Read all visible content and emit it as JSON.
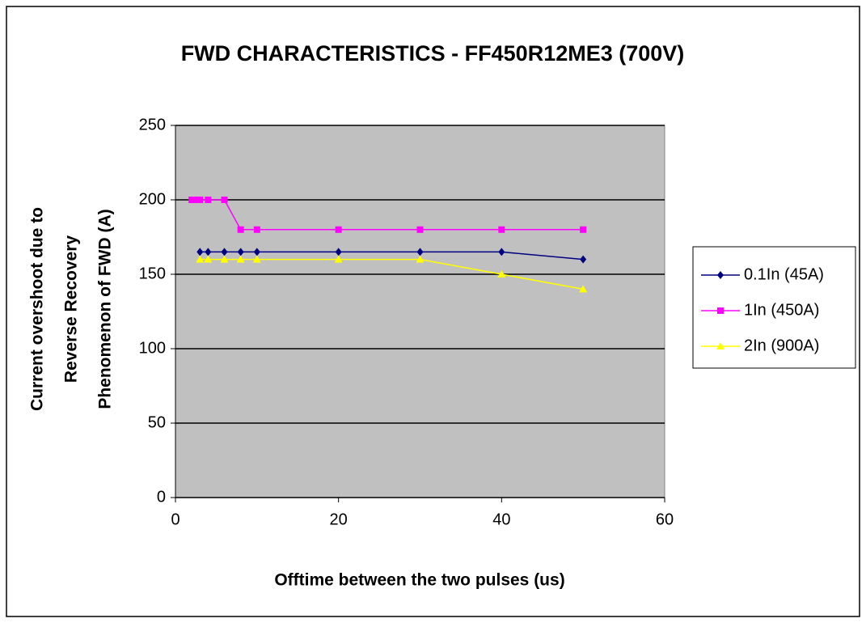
{
  "chart_data": {
    "type": "line",
    "title": "FWD CHARACTERISTICS - FF450R12ME3 (700V)",
    "x_label": "Offtime between the two pulses (us)",
    "y_label": [
      "Current overshoot due to",
      "Reverse Recovery",
      "Phenomenon of FWD (A)"
    ],
    "series": [
      {
        "name": "0.1In (45A)",
        "color": "#000080",
        "marker": "diamond",
        "x": [
          3,
          4,
          6,
          8,
          10,
          20,
          30,
          40,
          50
        ],
        "values": [
          165,
          165,
          165,
          165,
          165,
          165,
          165,
          165,
          160
        ]
      },
      {
        "name": "1In (450A)",
        "color": "#ff00ff",
        "marker": "square",
        "x": [
          2,
          2.5,
          3,
          4,
          6,
          8,
          10,
          20,
          30,
          40,
          50
        ],
        "values": [
          200,
          200,
          200,
          200,
          200,
          180,
          180,
          180,
          180,
          180,
          180
        ]
      },
      {
        "name": "2In (900A)",
        "color": "#ffff00",
        "marker": "triangle",
        "x": [
          3,
          4,
          6,
          8,
          10,
          20,
          30,
          40,
          50
        ],
        "values": [
          160,
          160,
          160,
          160,
          160,
          160,
          160,
          150,
          140
        ]
      }
    ],
    "xlim": [
      0,
      60
    ],
    "xticks": [
      0,
      20,
      40,
      60
    ],
    "ylim": [
      0,
      250
    ],
    "yticks": [
      0,
      50,
      100,
      150,
      200,
      250
    ],
    "grid": true,
    "legend": "right"
  }
}
